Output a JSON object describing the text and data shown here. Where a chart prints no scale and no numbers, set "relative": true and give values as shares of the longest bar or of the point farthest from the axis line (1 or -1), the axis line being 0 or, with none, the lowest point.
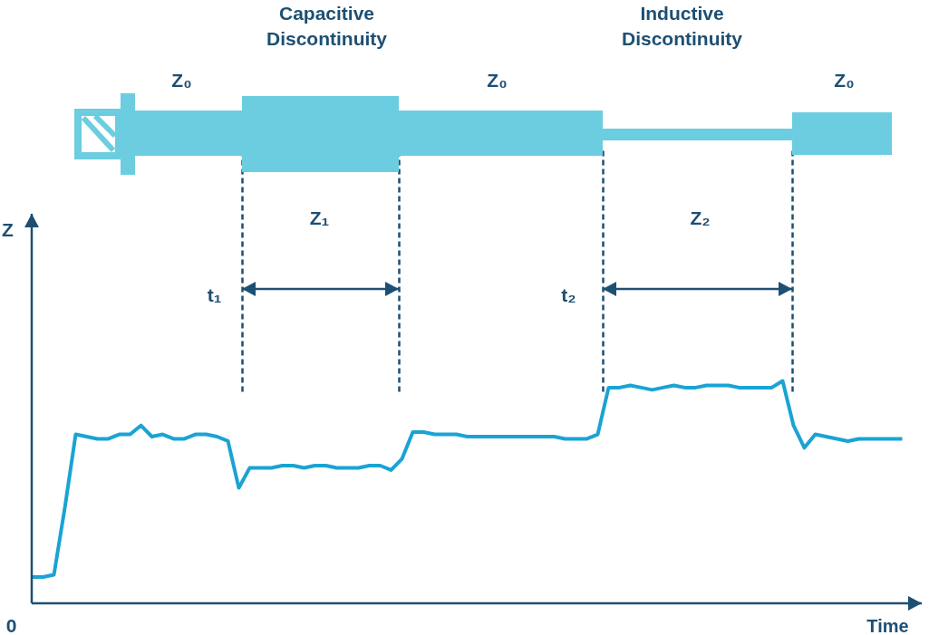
{
  "chart_data": {
    "type": "line",
    "relative": true,
    "xlabel": "Time",
    "line_style": "solid",
    "categories": [
      null,
      null,
      null,
      null,
      null,
      null,
      null,
      null,
      null,
      null,
      null,
      null,
      null,
      null,
      null,
      null,
      null,
      null,
      null,
      null,
      null,
      null,
      null,
      null,
      null,
      null,
      null,
      null,
      null,
      null,
      null,
      null,
      null,
      null,
      null,
      null,
      null,
      null,
      null,
      null,
      null,
      null,
      null,
      null,
      null,
      null,
      null,
      null,
      null,
      null,
      null,
      null,
      null,
      null,
      null,
      null,
      null,
      null,
      null,
      null,
      null,
      null,
      null,
      null,
      null,
      null,
      null,
      null,
      null,
      null,
      null,
      null,
      null,
      null,
      null,
      null,
      null,
      null,
      null,
      null,
      null
    ],
    "series": [
      {
        "color": "#1aa3d4",
        "values": [
          0.12,
          0.12,
          0.13,
          0.43,
          0.76,
          0.75,
          0.74,
          0.74,
          0.76,
          0.76,
          0.8,
          0.75,
          0.76,
          0.74,
          0.74,
          0.76,
          0.76,
          0.75,
          0.73,
          0.52,
          0.61,
          0.61,
          0.61,
          0.62,
          0.62,
          0.61,
          0.62,
          0.62,
          0.61,
          0.61,
          0.61,
          0.62,
          0.62,
          0.6,
          0.65,
          0.77,
          0.77,
          0.76,
          0.76,
          0.76,
          0.75,
          0.75,
          0.75,
          0.75,
          0.75,
          0.75,
          0.75,
          0.75,
          0.75,
          0.74,
          0.74,
          0.74,
          0.76,
          0.97,
          0.97,
          0.98,
          0.97,
          0.96,
          0.97,
          0.98,
          0.97,
          0.97,
          0.98,
          0.98,
          0.98,
          0.97,
          0.97,
          0.97,
          0.97,
          1.0,
          0.8,
          0.7,
          0.76,
          0.75,
          0.74,
          0.73,
          0.74,
          0.74,
          0.74,
          0.74,
          0.74
        ]
      }
    ],
    "annotations": [
      "Z₀",
      "Capacitive\nDiscontinuity",
      "Z₀",
      "Inductive\nDiscontinuity",
      "Z₀",
      "Z₁",
      "Z₂",
      "t₁",
      "t₂",
      "0",
      "Z"
    ]
  }
}
